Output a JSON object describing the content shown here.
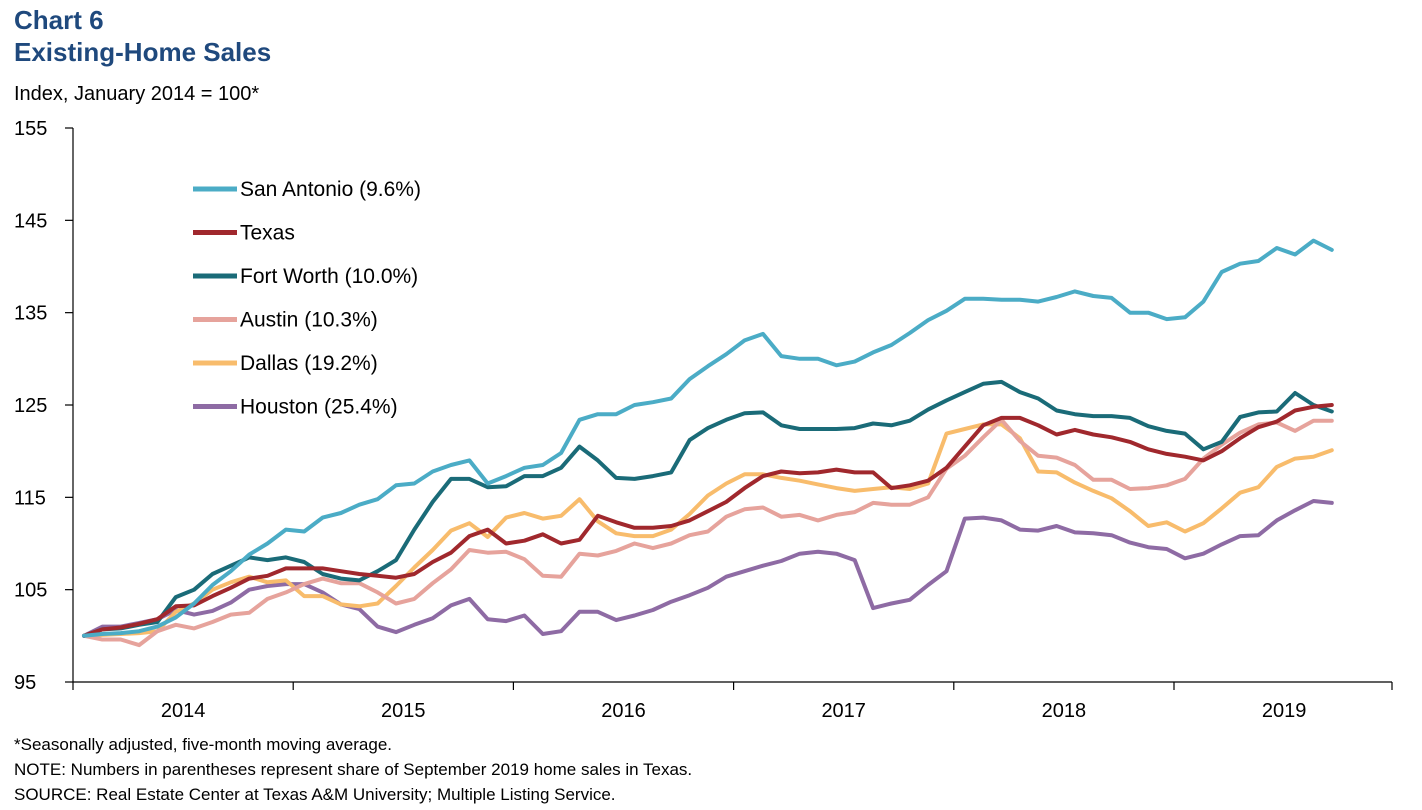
{
  "header": {
    "chart_number": "Chart 6",
    "title": "Existing-Home Sales",
    "units_label": "Index, January 2014 = 100*"
  },
  "footnotes": {
    "asterisk": "*Seasonally adjusted, five-month moving average.",
    "note": "NOTE: Numbers in parentheses represent share of September 2019 home sales in Texas.",
    "source": "SOURCE: Real Estate Center at Texas A&M University; Multiple Listing Service."
  },
  "chart_data": {
    "type": "line",
    "title": "Existing-Home Sales",
    "ylabel": "Index, January 2014 = 100*",
    "xlabel": "",
    "x_start": "2014-01",
    "x_end": "2019-09",
    "x_tick_labels": [
      "2014",
      "2015",
      "2016",
      "2017",
      "2018",
      "2019"
    ],
    "ylim": [
      95,
      155
    ],
    "y_ticks": [
      95,
      105,
      115,
      125,
      135,
      145,
      155
    ],
    "grid": false,
    "legend_position": "upper-left",
    "series": [
      {
        "name": "San Antonio (9.6%)",
        "color": "#4bacc6",
        "values": [
          100,
          100.2,
          100.3,
          100.5,
          101,
          102,
          103.5,
          105.5,
          107,
          108.8,
          110,
          111.5,
          111.3,
          112.8,
          113.3,
          114.2,
          114.8,
          116.3,
          116.5,
          117.8,
          118.5,
          119,
          116.5,
          117.3,
          118.2,
          118.5,
          119.8,
          123.4,
          124,
          124,
          125,
          125.3,
          125.7,
          127.8,
          129.2,
          130.5,
          132,
          132.7,
          130.3,
          130,
          130,
          129.3,
          129.7,
          130.7,
          131.5,
          132.8,
          134.2,
          135.2,
          136.5,
          136.5,
          136.4,
          136.4,
          136.2,
          136.7,
          137.3,
          136.8,
          136.6,
          135,
          135,
          134.3,
          134.5,
          136.2,
          139.4,
          140.3,
          140.6,
          142,
          141.3,
          142.8,
          141.8
        ]
      },
      {
        "name": "Texas",
        "color": "#a0282d",
        "values": [
          100,
          100.7,
          100.9,
          101.3,
          101.8,
          103.2,
          103.3,
          104.3,
          105.2,
          106.2,
          106.5,
          107.3,
          107.3,
          107.3,
          107,
          106.7,
          106.5,
          106.3,
          106.7,
          108,
          109,
          110.8,
          111.5,
          110,
          110.3,
          111,
          110,
          110.4,
          113,
          112.3,
          111.7,
          111.7,
          111.9,
          112.5,
          113.5,
          114.5,
          116,
          117.3,
          117.8,
          117.6,
          117.7,
          118,
          117.7,
          117.7,
          116,
          116.3,
          116.8,
          118.2,
          120.5,
          122.8,
          123.6,
          123.6,
          122.8,
          121.8,
          122.3,
          121.8,
          121.5,
          121,
          120.2,
          119.7,
          119.4,
          119,
          120,
          121.4,
          122.6,
          123.2,
          124.4,
          124.8,
          125
        ]
      },
      {
        "name": "Fort Worth (10.0%)",
        "color": "#1a6b78",
        "values": [
          100,
          100.7,
          100.8,
          101.2,
          101.5,
          104.2,
          105,
          106.7,
          107.6,
          108.5,
          108.2,
          108.5,
          108,
          106.7,
          106.2,
          106,
          107,
          108.2,
          111.5,
          114.5,
          117,
          117,
          116.1,
          116.2,
          117.3,
          117.3,
          118.2,
          120.5,
          119,
          117.1,
          117,
          117.3,
          117.7,
          121.2,
          122.5,
          123.4,
          124.1,
          124.2,
          122.8,
          122.4,
          122.4,
          122.4,
          122.5,
          123,
          122.8,
          123.3,
          124.5,
          125.5,
          126.4,
          127.3,
          127.5,
          126.4,
          125.7,
          124.4,
          124,
          123.8,
          123.8,
          123.6,
          122.7,
          122.2,
          121.9,
          120.2,
          121,
          123.7,
          124.2,
          124.3,
          126.3,
          125,
          124.3
        ]
      },
      {
        "name": "Austin (10.3%)",
        "color": "#e6a39c",
        "values": [
          100,
          99.6,
          99.6,
          99,
          100.5,
          101.2,
          100.8,
          101.5,
          102.3,
          102.5,
          104,
          104.7,
          105.6,
          106.2,
          105.7,
          105.7,
          104.7,
          103.5,
          104,
          105.7,
          107.2,
          109.3,
          109,
          109.1,
          108.3,
          106.5,
          106.4,
          108.9,
          108.7,
          109.2,
          110,
          109.5,
          110,
          110.9,
          111.3,
          112.9,
          113.7,
          113.9,
          112.9,
          113.1,
          112.5,
          113.1,
          113.4,
          114.4,
          114.2,
          114.2,
          115,
          118.1,
          119.5,
          121.5,
          123.4,
          121.1,
          119.5,
          119.3,
          118.5,
          116.9,
          116.9,
          115.9,
          116,
          116.3,
          117,
          119.2,
          120.7,
          122,
          122.9,
          123.1,
          122.2,
          123.3,
          123.3
        ]
      },
      {
        "name": "Dallas (19.2%)",
        "color": "#f8bc6c",
        "values": [
          100,
          100.1,
          100.2,
          100.3,
          100.5,
          102.6,
          103.5,
          105,
          105.8,
          106.4,
          105.8,
          106,
          104.3,
          104.3,
          103.4,
          103.2,
          103.5,
          105.4,
          107.4,
          109.3,
          111.4,
          112.2,
          110.7,
          112.8,
          113.3,
          112.7,
          113,
          114.8,
          112.4,
          111.1,
          110.8,
          110.8,
          111.5,
          113.2,
          115.2,
          116.5,
          117.5,
          117.5,
          117.1,
          116.8,
          116.4,
          116,
          115.7,
          115.9,
          116.1,
          115.9,
          116.5,
          121.9,
          122.4,
          122.9,
          122.9,
          121.4,
          117.8,
          117.7,
          116.6,
          115.7,
          114.9,
          113.5,
          111.9,
          112.3,
          111.3,
          112.2,
          113.8,
          115.5,
          116.1,
          118.3,
          119.2,
          119.4,
          120.1
        ]
      },
      {
        "name": "Houston (25.4%)",
        "color": "#8e6ba4",
        "values": [
          100,
          101,
          101,
          101.4,
          101.8,
          102.8,
          102.3,
          102.7,
          103.6,
          105,
          105.4,
          105.6,
          105.6,
          104.7,
          103.4,
          102.9,
          101,
          100.4,
          101.2,
          101.9,
          103.3,
          104,
          101.8,
          101.6,
          102.2,
          100.2,
          100.5,
          102.6,
          102.6,
          101.7,
          102.2,
          102.8,
          103.7,
          104.4,
          105.2,
          106.4,
          107,
          107.6,
          108.1,
          108.9,
          109.1,
          108.9,
          108.2,
          103,
          103.5,
          103.9,
          105.5,
          107,
          112.7,
          112.8,
          112.5,
          111.5,
          111.4,
          111.9,
          111.2,
          111.1,
          110.9,
          110.1,
          109.6,
          109.4,
          108.4,
          108.9,
          109.9,
          110.8,
          110.9,
          112.5,
          113.6,
          114.6,
          114.4
        ]
      }
    ]
  }
}
